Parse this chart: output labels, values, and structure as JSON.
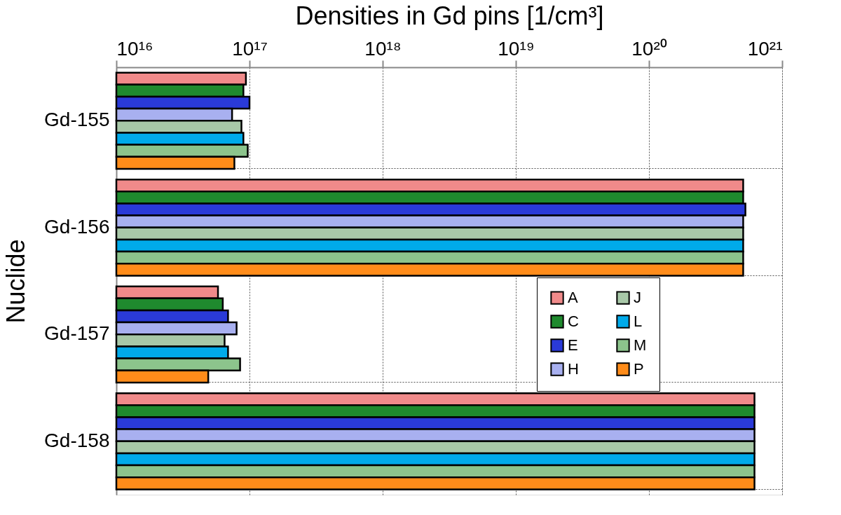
{
  "chart_data": {
    "type": "bar",
    "orientation": "horizontal",
    "xlabel": "Densities in Gd pins [1/cm³]",
    "ylabel": "Nuclide",
    "categories": [
      "Gd-155",
      "Gd-156",
      "Gd-157",
      "Gd-158"
    ],
    "series": [
      {
        "name": "A",
        "color": "#f08a8a",
        "values": [
          9.4e+16,
          5.1e+20,
          5.8e+16,
          6.2e+20
        ]
      },
      {
        "name": "C",
        "color": "#1f8a2e",
        "values": [
          9e+16,
          5.1e+20,
          6.3e+16,
          6.2e+20
        ]
      },
      {
        "name": "E",
        "color": "#2a3ad8",
        "values": [
          1e+17,
          5.3e+20,
          6.9e+16,
          6.2e+20
        ]
      },
      {
        "name": "H",
        "color": "#a8b0f0",
        "values": [
          7.4e+16,
          5.1e+20,
          8e+16,
          6.2e+20
        ]
      },
      {
        "name": "J",
        "color": "#a8c8a8",
        "values": [
          8.7e+16,
          5.1e+20,
          6.5e+16,
          6.2e+20
        ]
      },
      {
        "name": "L",
        "color": "#00aaea",
        "values": [
          9e+16,
          5.1e+20,
          6.9e+16,
          6.2e+20
        ]
      },
      {
        "name": "M",
        "color": "#8cc48c",
        "values": [
          9.7e+16,
          5.1e+20,
          8.5e+16,
          6.2e+20
        ]
      },
      {
        "name": "P",
        "color": "#ff8c1a",
        "values": [
          7.7e+16,
          5.1e+20,
          4.9e+16,
          6.2e+20
        ]
      }
    ],
    "log": "x",
    "xlim": [
      1e+16,
      1e+21
    ],
    "xticks": [
      {
        "value": 1e+16,
        "label": "10¹⁶"
      },
      {
        "value": 1e+17,
        "label": "10¹⁷"
      },
      {
        "value": 1e+18,
        "label": "10¹⁸"
      },
      {
        "value": 1e+19,
        "label": "10¹⁹"
      },
      {
        "value": 1e+20,
        "label": "10²⁰"
      },
      {
        "value": 1e+21,
        "label": "10²¹"
      }
    ],
    "grid": true,
    "legend": "right"
  }
}
